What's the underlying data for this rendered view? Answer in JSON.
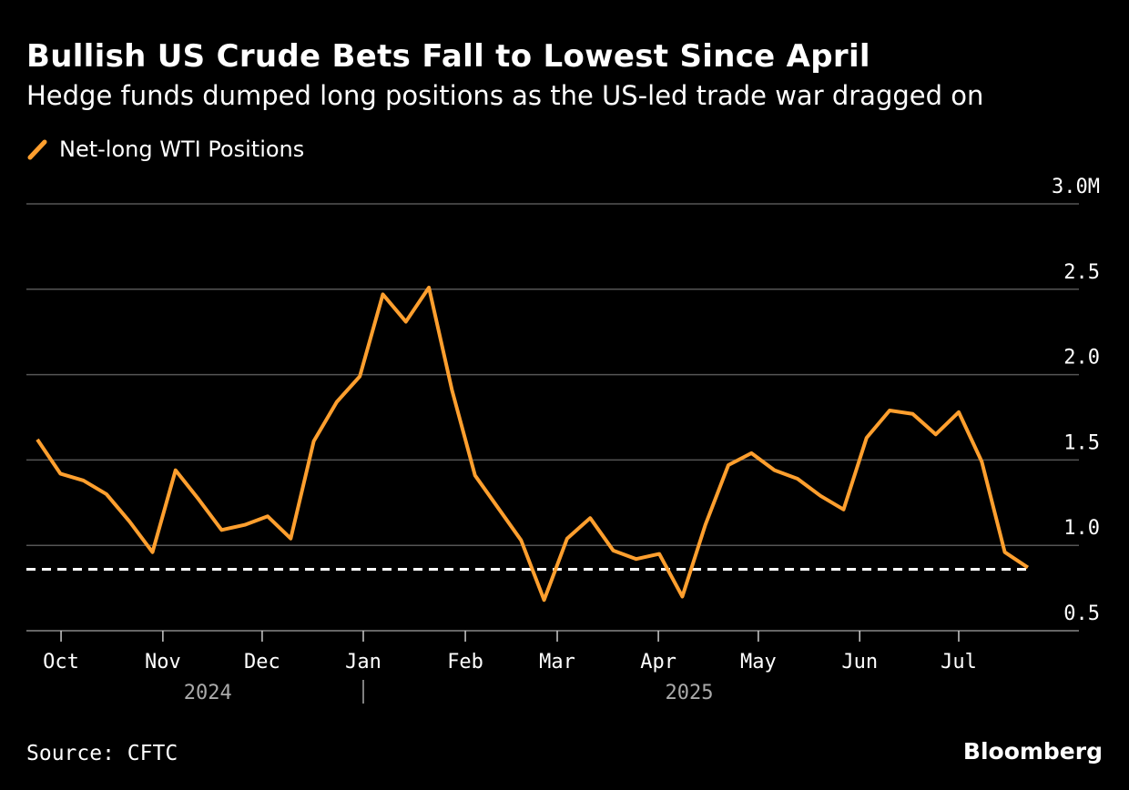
{
  "title": "Bullish US Crude Bets Fall to Lowest Since April",
  "subtitle": "Hedge funds dumped long positions as the US-led trade war dragged on",
  "source": "Source: CFTC",
  "brand": "Bloomberg",
  "chart_data": {
    "type": "line",
    "legend": [
      {
        "name": "Net-long WTI Positions",
        "color": "#ff9f2e"
      }
    ],
    "ylabel": "",
    "ylim": [
      0.5,
      3.0
    ],
    "yticks": [
      {
        "v": 0.5,
        "label": "0.5"
      },
      {
        "v": 1.0,
        "label": "1.0"
      },
      {
        "v": 1.5,
        "label": "1.5"
      },
      {
        "v": 2.0,
        "label": "2.0"
      },
      {
        "v": 2.5,
        "label": "2.5"
      },
      {
        "v": 3.0,
        "label": "3.0M"
      }
    ],
    "xlim": [
      -0.5,
      45.1
    ],
    "xticks": [
      {
        "v": 1.03,
        "label": "Oct"
      },
      {
        "v": 5.45,
        "label": "Nov"
      },
      {
        "v": 9.76,
        "label": "Dec"
      },
      {
        "v": 14.15,
        "label": "Jan"
      },
      {
        "v": 18.58,
        "label": "Feb"
      },
      {
        "v": 22.57,
        "label": "Mar"
      },
      {
        "v": 26.96,
        "label": "Apr"
      },
      {
        "v": 31.3,
        "label": "May"
      },
      {
        "v": 35.7,
        "label": "Jun"
      },
      {
        "v": 40.0,
        "label": "Jul"
      }
    ],
    "years": [
      {
        "v": 7.4,
        "label": "2024"
      },
      {
        "v": 28.3,
        "label": "2025"
      }
    ],
    "year_divider": 14.15,
    "reference_line": {
      "value": 0.86,
      "style": "dashed",
      "color": "#ffffff"
    },
    "series": [
      {
        "name": "Net-long WTI Positions",
        "color": "#ff9f2e",
        "values": [
          1.62,
          1.42,
          1.38,
          1.3,
          1.14,
          0.96,
          1.44,
          1.27,
          1.09,
          1.12,
          1.17,
          1.04,
          1.61,
          1.84,
          1.99,
          2.47,
          2.31,
          2.51,
          1.91,
          1.41,
          1.22,
          1.03,
          0.68,
          1.04,
          1.16,
          0.97,
          0.92,
          0.95,
          0.7,
          1.12,
          1.47,
          1.54,
          1.44,
          1.39,
          1.29,
          1.21,
          1.63,
          1.79,
          1.77,
          1.65,
          1.78,
          1.49,
          0.96,
          0.87
        ]
      }
    ],
    "grid": true
  }
}
